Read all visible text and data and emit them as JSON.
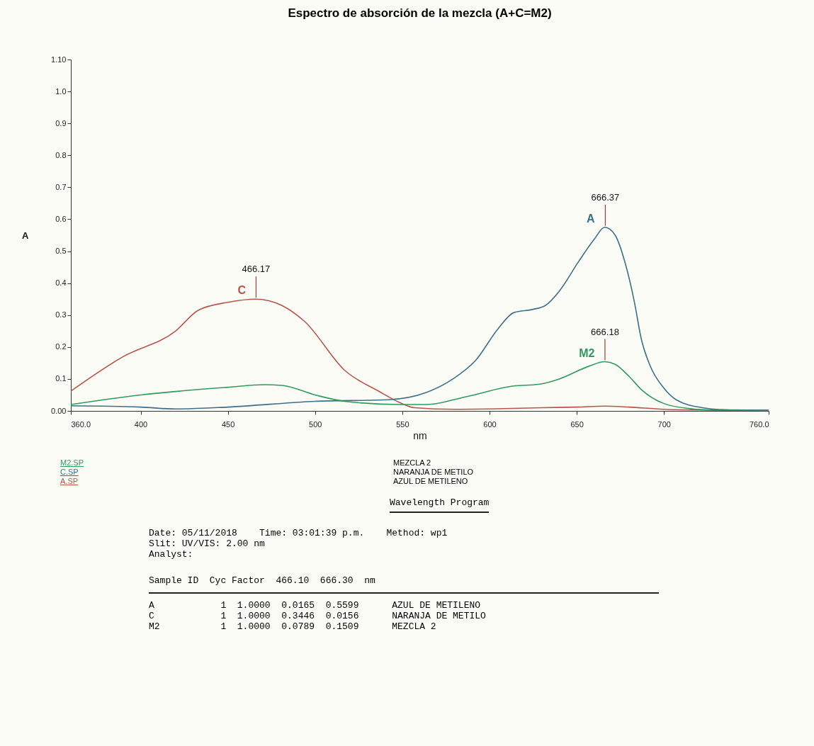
{
  "chart_data": {
    "type": "line",
    "title": "Espectro de absorción de la mezcla (A+C=M2)",
    "xlabel": "nm",
    "ylabel": "A",
    "xlim": [
      360,
      760
    ],
    "xticks": [
      {
        "value": 360,
        "label": "360.0"
      },
      400,
      450,
      500,
      550,
      600,
      650,
      700,
      {
        "value": 760,
        "label": "760.0"
      }
    ],
    "ylim": [
      0,
      1.1
    ],
    "yticks": [
      {
        "value": 0,
        "label": "0.00"
      },
      0.1,
      0.2,
      0.3,
      0.4,
      0.5,
      0.6,
      0.7,
      0.8,
      0.9,
      {
        "value": 1,
        "label": "1.0"
      },
      {
        "value": 1.1,
        "label": "1.10"
      }
    ],
    "grid": false,
    "legend": false,
    "marker": "none",
    "line_style": "solid",
    "series": [
      {
        "name": "C",
        "color": "#b5564c",
        "x": [
          360,
          390,
          420,
          433,
          450,
          466,
          481,
          494,
          517,
          537,
          549,
          557,
          580,
          600,
          630,
          650,
          666,
          680,
          700,
          720,
          760
        ],
        "values": [
          0.062,
          0.17,
          0.25,
          0.315,
          0.34,
          0.35,
          0.33,
          0.28,
          0.127,
          0.06,
          0.025,
          0.01,
          0.005,
          0.006,
          0.01,
          0.012,
          0.015,
          0.012,
          0.005,
          0.003,
          0.002
        ]
      },
      {
        "name": "A",
        "color": "#3d6f88",
        "x": [
          360,
          400,
          420,
          450,
          500,
          542,
          564,
          579,
          592,
          605,
          614,
          625,
          632,
          640,
          651,
          660,
          666,
          672,
          678,
          683,
          687,
          692,
          700,
          707,
          722,
          738,
          760
        ],
        "values": [
          0.016,
          0.012,
          0.006,
          0.012,
          0.03,
          0.035,
          0.058,
          0.1,
          0.158,
          0.258,
          0.308,
          0.318,
          0.33,
          0.375,
          0.467,
          0.537,
          0.575,
          0.55,
          0.458,
          0.342,
          0.225,
          0.142,
          0.071,
          0.035,
          0.01,
          0.003,
          0.002
        ]
      },
      {
        "name": "M2",
        "color": "#2f9a5e",
        "x": [
          360,
          400,
          450,
          471,
          481,
          500,
          517,
          549,
          564,
          587,
          614,
          628,
          640,
          657,
          666,
          672,
          680,
          687,
          700,
          715,
          730,
          760
        ],
        "values": [
          0.02,
          0.05,
          0.074,
          0.082,
          0.08,
          0.05,
          0.03,
          0.02,
          0.02,
          0.045,
          0.078,
          0.083,
          0.1,
          0.14,
          0.154,
          0.146,
          0.108,
          0.067,
          0.023,
          0.007,
          0.002,
          0.001
        ]
      }
    ],
    "annotations": [
      {
        "text": "466.17",
        "x": 466.17,
        "y": 0.35
      },
      {
        "text": "666.37",
        "x": 666.37,
        "y": 0.575
      },
      {
        "text": "666.18",
        "x": 666.18,
        "y": 0.154
      },
      "M2.SP",
      "MEZCLA 2",
      "C.SP",
      "NARANJA DE METILO",
      "A.SP",
      "AZUL DE METILENO",
      "Wavelength Program",
      "Date: 05/11/2018    Time: 03:01:39 p.m.    Method: wp1",
      "Slit: UV/VIS: 2.00 nm",
      "Analyst:",
      "Sample ID  Cyc Factor  466.10  666.30  nm",
      "A            1  1.0000  0.0165  0.5599      AZUL DE METILENO",
      "C            1  1.0000  0.3446  0.0156      NARANJA DE METILO",
      "M2           1  1.0000  0.0789  0.1509      MEZCLA 2"
    ]
  }
}
